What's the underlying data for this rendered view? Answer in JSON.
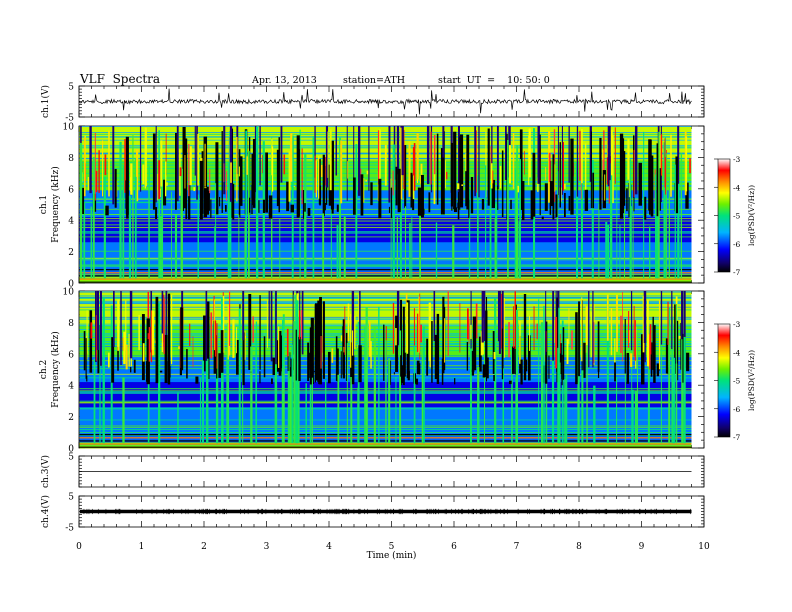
{
  "header": {
    "title": "VLF  Spectra",
    "date": "Apr. 13, 2013",
    "station": "station=ATH",
    "start": "start  UT  =    10: 50: 0"
  },
  "chart_data": [
    {
      "type": "line",
      "panel": "ch1-waveform",
      "ylabel": "ch.1(V)",
      "ylim": [
        -5,
        5
      ],
      "yticks": [
        "5",
        "-5"
      ],
      "xlim": [
        0,
        10
      ],
      "baseline": 0,
      "data_x_range": [
        0,
        9.8
      ]
    },
    {
      "type": "heatmap",
      "panel": "ch1-spectrogram",
      "ylabel": "ch.1\nFrequency (kHz)",
      "ylim": [
        0,
        10
      ],
      "yticks": [
        "0",
        "2",
        "4",
        "6",
        "8",
        "10"
      ],
      "xlim": [
        0,
        10
      ],
      "data_x_range": [
        0,
        9.8
      ],
      "colorbar": {
        "label": "log(PSD(V²/Hz))",
        "range": [
          -7,
          -3
        ],
        "ticks": [
          "-3",
          "-4",
          "-5",
          "-6",
          "-7"
        ]
      }
    },
    {
      "type": "heatmap",
      "panel": "ch2-spectrogram",
      "ylabel": "ch.2\nFrequency (kHz)",
      "ylim": [
        0,
        10
      ],
      "yticks": [
        "0",
        "2",
        "4",
        "6",
        "8",
        "10"
      ],
      "xlim": [
        0,
        10
      ],
      "data_x_range": [
        0,
        9.8
      ],
      "colorbar": {
        "label": "log(PSD(V²/Hz))",
        "range": [
          -7,
          -3
        ],
        "ticks": [
          "-3",
          "-4",
          "-5",
          "-6",
          "-7"
        ]
      }
    },
    {
      "type": "line",
      "panel": "ch3-waveform",
      "ylabel": "ch.3(V)",
      "ylim": [
        -5,
        5
      ],
      "yticks": [
        "5"
      ],
      "xlim": [
        0,
        10
      ],
      "baseline": 0,
      "data_x_range": [
        0,
        9.8
      ]
    },
    {
      "type": "line",
      "panel": "ch4-waveform",
      "ylabel": "ch.4(V)",
      "ylim": [
        -5,
        5
      ],
      "yticks": [
        "5",
        "-5"
      ],
      "xlim": [
        0,
        10
      ],
      "baseline": 0,
      "data_x_range": [
        0,
        9.8
      ]
    }
  ],
  "xaxis": {
    "label": "Time  (min)",
    "ticks": [
      "0",
      "1",
      "2",
      "3",
      "4",
      "5",
      "6",
      "7",
      "8",
      "9",
      "10"
    ]
  }
}
